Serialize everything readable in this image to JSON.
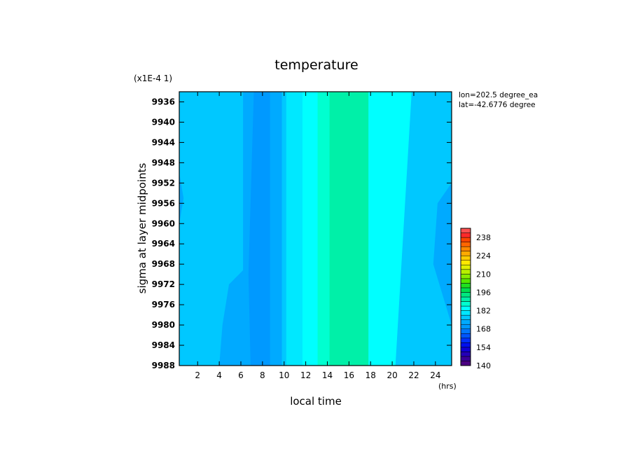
{
  "chart_data": {
    "type": "heatmap",
    "title": "temperature",
    "scale_label": "(x1E-4 1)",
    "xlabel": "local time",
    "x_unit": "(hrs)",
    "ylabel": "sigma at layer midpoints",
    "annotations": [
      "lon=202.5 degree_ea",
      "lat=-42.6776 degree"
    ],
    "xlim": [
      0.3,
      25.5
    ],
    "ylim": [
      9988,
      9934
    ],
    "x_ticks": [
      2,
      4,
      6,
      8,
      10,
      12,
      14,
      16,
      18,
      20,
      22,
      24
    ],
    "x_tick_labels": [
      "2",
      "4",
      "6",
      "8",
      "10",
      "12",
      "14",
      "16",
      "18",
      "20",
      "22",
      "24"
    ],
    "y_ticks": [
      9936,
      9940,
      9944,
      9948,
      9952,
      9956,
      9960,
      9964,
      9968,
      9972,
      9976,
      9980,
      9984,
      9988
    ],
    "y_tick_labels": [
      "9936",
      "9940",
      "9944",
      "9948",
      "9952",
      "9956",
      "9960",
      "9964",
      "9968",
      "9972",
      "9976",
      "9980",
      "9984",
      "9988"
    ],
    "colorbar": {
      "min": 140,
      "max": 245,
      "step": 3.5,
      "labeled_values": [
        140,
        154,
        168,
        182,
        196,
        210,
        224,
        238
      ],
      "labels": [
        "140",
        "154",
        "168",
        "182",
        "196",
        "210",
        "224",
        "238"
      ]
    },
    "regions": [
      {
        "level": 168,
        "color": "#00c8ff",
        "x": [
          0.3,
          25.5,
          25.5,
          0.3
        ],
        "y": [
          9934,
          9934,
          9988,
          9988
        ]
      },
      {
        "level": 164.5,
        "color": "#00aaff",
        "x": [
          6.2,
          9.8,
          9.8,
          6.2
        ],
        "y": [
          9934,
          9934,
          9988,
          9988
        ]
      },
      {
        "level": 164.5,
        "color": "#00aaff",
        "x": [
          0.3,
          0.7,
          0.3
        ],
        "y": [
          9950,
          9955,
          9960
        ]
      },
      {
        "level": 164.5,
        "color": "#00aaff",
        "x": [
          4.0,
          6.3,
          6.3,
          4.9,
          4.3
        ],
        "y": [
          9988,
          9988,
          9969,
          9972,
          9980
        ]
      },
      {
        "level": 164.5,
        "color": "#00aaff",
        "x": [
          25.5,
          23.8,
          24.2,
          25.5
        ],
        "y": [
          9980,
          9968,
          9956,
          9952
        ]
      },
      {
        "level": 161,
        "color": "#0099ff",
        "x": [
          7.2,
          8.7,
          8.7,
          6.9,
          6.7
        ],
        "y": [
          9934,
          9934,
          9988,
          9988,
          9970
        ]
      },
      {
        "level": 171.5,
        "color": "#00e8ff",
        "x": [
          10.2,
          13.3,
          13.3,
          10.2
        ],
        "y": [
          9934,
          9934,
          9988,
          9988
        ]
      },
      {
        "level": 175,
        "color": "#00ffff",
        "x": [
          11.7,
          13.1,
          13.1,
          11.7
        ],
        "y": [
          9934,
          9934,
          9988,
          9988
        ]
      },
      {
        "level": 175,
        "color": "#00ffff",
        "x": [
          17.8,
          21.8,
          20.3,
          17.8
        ],
        "y": [
          9934,
          9934,
          9988,
          9988
        ]
      },
      {
        "level": 178.5,
        "color": "#00ffd0",
        "x": [
          13.1,
          17.8,
          17.8,
          13.1
        ],
        "y": [
          9934,
          9934,
          9988,
          9988
        ]
      },
      {
        "level": 182,
        "color": "#00f0a8",
        "x": [
          14.2,
          17.8,
          17.8,
          14.2
        ],
        "y": [
          9934,
          9934,
          9988,
          9988
        ]
      }
    ]
  }
}
